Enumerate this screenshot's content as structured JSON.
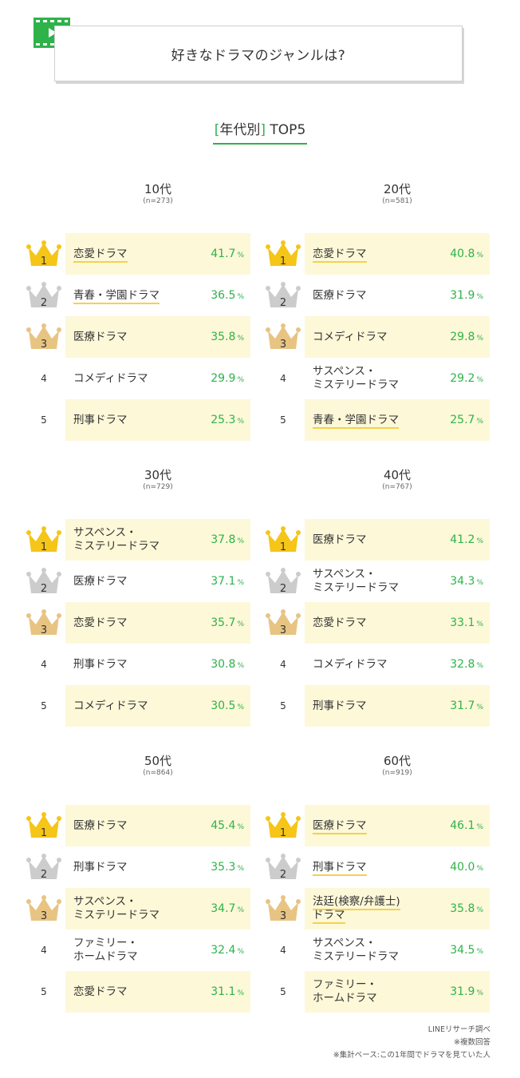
{
  "header": {
    "title": "好きなドラマのジャンルは?"
  },
  "section_title": {
    "open": "[",
    "label": "年代別",
    "close": "]",
    "suffix": "TOP5"
  },
  "colors": {
    "accent": "#2eb34a",
    "highlight": "#fdf8d8",
    "gold": "#f5c518",
    "silver": "#cccccc",
    "bronze": "#e8c483",
    "underline": "#f3d24a"
  },
  "panels": [
    {
      "age": "10代",
      "n": "(n=273)",
      "rows": [
        {
          "rank": "1",
          "genre": "恋愛ドラマ",
          "value": "41.7",
          "unit": "%",
          "hl": true,
          "u": true
        },
        {
          "rank": "2",
          "genre": "青春・学園ドラマ",
          "value": "36.5",
          "unit": "%",
          "hl": false,
          "u": true
        },
        {
          "rank": "3",
          "genre": "医療ドラマ",
          "value": "35.8",
          "unit": "%",
          "hl": true,
          "u": false
        },
        {
          "rank": "4",
          "genre": "コメディドラマ",
          "value": "29.9",
          "unit": "%",
          "hl": false,
          "u": false
        },
        {
          "rank": "5",
          "genre": "刑事ドラマ",
          "value": "25.3",
          "unit": "%",
          "hl": true,
          "u": false
        }
      ]
    },
    {
      "age": "20代",
      "n": "(n=581)",
      "rows": [
        {
          "rank": "1",
          "genre": "恋愛ドラマ",
          "value": "40.8",
          "unit": "%",
          "hl": true,
          "u": true
        },
        {
          "rank": "2",
          "genre": "医療ドラマ",
          "value": "31.9",
          "unit": "%",
          "hl": false,
          "u": false
        },
        {
          "rank": "3",
          "genre": "コメディドラマ",
          "value": "29.8",
          "unit": "%",
          "hl": true,
          "u": false
        },
        {
          "rank": "4",
          "genre": "サスペンス・\nミステリードラマ",
          "value": "29.2",
          "unit": "%",
          "hl": false,
          "u": false
        },
        {
          "rank": "5",
          "genre": "青春・学園ドラマ",
          "value": "25.7",
          "unit": "%",
          "hl": true,
          "u": true
        }
      ]
    },
    {
      "age": "30代",
      "n": "(n=729)",
      "rows": [
        {
          "rank": "1",
          "genre": "サスペンス・\nミステリードラマ",
          "value": "37.8",
          "unit": "%",
          "hl": true,
          "u": false
        },
        {
          "rank": "2",
          "genre": "医療ドラマ",
          "value": "37.1",
          "unit": "%",
          "hl": false,
          "u": false
        },
        {
          "rank": "3",
          "genre": "恋愛ドラマ",
          "value": "35.7",
          "unit": "%",
          "hl": true,
          "u": false
        },
        {
          "rank": "4",
          "genre": "刑事ドラマ",
          "value": "30.8",
          "unit": "%",
          "hl": false,
          "u": false
        },
        {
          "rank": "5",
          "genre": "コメディドラマ",
          "value": "30.5",
          "unit": "%",
          "hl": true,
          "u": false
        }
      ]
    },
    {
      "age": "40代",
      "n": "(n=767)",
      "rows": [
        {
          "rank": "1",
          "genre": "医療ドラマ",
          "value": "41.2",
          "unit": "%",
          "hl": true,
          "u": false
        },
        {
          "rank": "2",
          "genre": "サスペンス・\nミステリードラマ",
          "value": "34.3",
          "unit": "%",
          "hl": false,
          "u": false
        },
        {
          "rank": "3",
          "genre": "恋愛ドラマ",
          "value": "33.1",
          "unit": "%",
          "hl": true,
          "u": false
        },
        {
          "rank": "4",
          "genre": "コメディドラマ",
          "value": "32.8",
          "unit": "%",
          "hl": false,
          "u": false
        },
        {
          "rank": "5",
          "genre": "刑事ドラマ",
          "value": "31.7",
          "unit": "%",
          "hl": true,
          "u": false
        }
      ]
    },
    {
      "age": "50代",
      "n": "(n=864)",
      "rows": [
        {
          "rank": "1",
          "genre": "医療ドラマ",
          "value": "45.4",
          "unit": "%",
          "hl": true,
          "u": false
        },
        {
          "rank": "2",
          "genre": "刑事ドラマ",
          "value": "35.3",
          "unit": "%",
          "hl": false,
          "u": false
        },
        {
          "rank": "3",
          "genre": "サスペンス・\nミステリードラマ",
          "value": "34.7",
          "unit": "%",
          "hl": true,
          "u": false
        },
        {
          "rank": "4",
          "genre": "ファミリー・\nホームドラマ",
          "value": "32.4",
          "unit": "%",
          "hl": false,
          "u": false
        },
        {
          "rank": "5",
          "genre": "恋愛ドラマ",
          "value": "31.1",
          "unit": "%",
          "hl": true,
          "u": false
        }
      ]
    },
    {
      "age": "60代",
      "n": "(n=919)",
      "rows": [
        {
          "rank": "1",
          "genre": "医療ドラマ",
          "value": "46.1",
          "unit": "%",
          "hl": true,
          "u": true
        },
        {
          "rank": "2",
          "genre": "刑事ドラマ",
          "value": "40.0",
          "unit": "%",
          "hl": false,
          "u": true
        },
        {
          "rank": "3",
          "genre": "法廷(検察/弁護士)\nドラマ",
          "value": "35.8",
          "unit": "%",
          "hl": true,
          "u": true
        },
        {
          "rank": "4",
          "genre": "サスペンス・\nミステリードラマ",
          "value": "34.5",
          "unit": "%",
          "hl": false,
          "u": false
        },
        {
          "rank": "5",
          "genre": "ファミリー・\nホームドラマ",
          "value": "31.9",
          "unit": "%",
          "hl": true,
          "u": false
        }
      ]
    }
  ],
  "footer": {
    "source": "LINEリサーチ調べ",
    "note1": "※複数回答",
    "note2": "※集計ベース:この1年間でドラマを見ていた人"
  }
}
